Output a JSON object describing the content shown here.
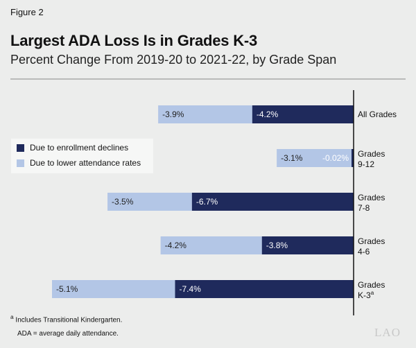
{
  "figure_label": "Figure 2",
  "chart_data": {
    "type": "bar",
    "orientation": "horizontal",
    "stacked": true,
    "title": "Largest ADA Loss Is in Grades K-3",
    "subtitle": "Percent Change From 2019-20 to 2021-22, by Grade Span",
    "categories": [
      "All Grades",
      "Grades 9-12",
      "Grades 7-8",
      "Grades 4-6",
      "Grades K-3"
    ],
    "category_lines": [
      [
        "All Grades"
      ],
      [
        "Grades",
        "9-12"
      ],
      [
        "Grades",
        "7-8"
      ],
      [
        "Grades",
        "4-6"
      ],
      [
        "Grades",
        "K-3"
      ]
    ],
    "series": [
      {
        "name": "Due to enrollment declines",
        "color": "#1f2a5c",
        "values": [
          -4.2,
          -0.02,
          -6.7,
          -3.8,
          -7.4
        ],
        "labels": [
          "-4.2%",
          "-0.02%",
          "-6.7%",
          "-3.8%",
          "-7.4%"
        ]
      },
      {
        "name": "Due to lower attendance rates",
        "color": "#b3c6e6",
        "values": [
          -3.9,
          -3.1,
          -3.5,
          -4.2,
          -5.1
        ],
        "labels": [
          "-3.9%",
          "-3.1%",
          "-3.5%",
          "-4.2%",
          "-5.1%"
        ]
      }
    ],
    "xlim": [
      -12.5,
      0
    ],
    "legend_position": "left",
    "grid": false
  },
  "legend": [
    "Due to enrollment declines",
    "Due to lower attendance rates"
  ],
  "footnotes": {
    "marker": "a",
    "note": "Includes Transitional Kindergarten.",
    "abbrev": "ADA = average daily attendance."
  },
  "logo": "LAO"
}
